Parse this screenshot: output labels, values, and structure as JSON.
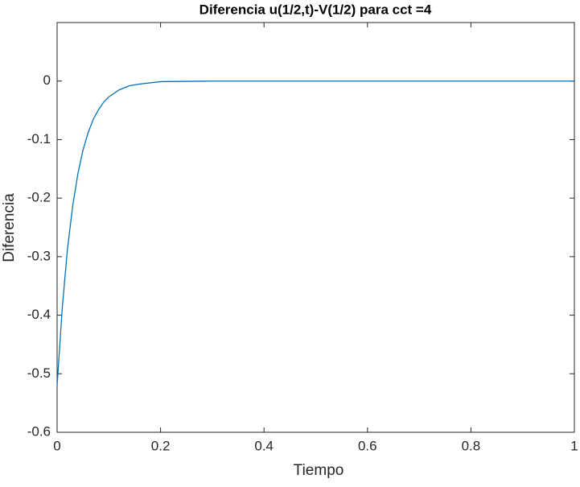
{
  "chart_data": {
    "type": "line",
    "title": "Diferencia u(1/2,t)-V(1/2) para cct =4",
    "x_label": "Tiempo",
    "y_label": "Diferencia",
    "x": [
      0,
      0.01,
      0.02,
      0.03,
      0.04,
      0.05,
      0.06,
      0.07,
      0.08,
      0.09,
      0.1,
      0.12,
      0.14,
      0.16,
      0.2,
      0.3,
      0.5,
      0.7,
      1.0
    ],
    "series": [
      {
        "name": "Diferencia",
        "color": "#0072bd",
        "values": [
          -0.52,
          -0.387,
          -0.287,
          -0.214,
          -0.159,
          -0.118,
          -0.088,
          -0.065,
          -0.049,
          -0.036,
          -0.027,
          -0.015,
          -0.008,
          -0.005,
          -0.001,
          0,
          0,
          0,
          0
        ]
      }
    ],
    "xlim": [
      0,
      1
    ],
    "xticks": [
      0,
      0.2,
      0.4,
      0.6,
      0.8,
      1
    ],
    "ylim": [
      -0.6,
      0.1
    ],
    "yticks": [
      -0.6,
      -0.5,
      -0.4,
      -0.3,
      -0.2,
      -0.1,
      0
    ],
    "grid": false
  }
}
